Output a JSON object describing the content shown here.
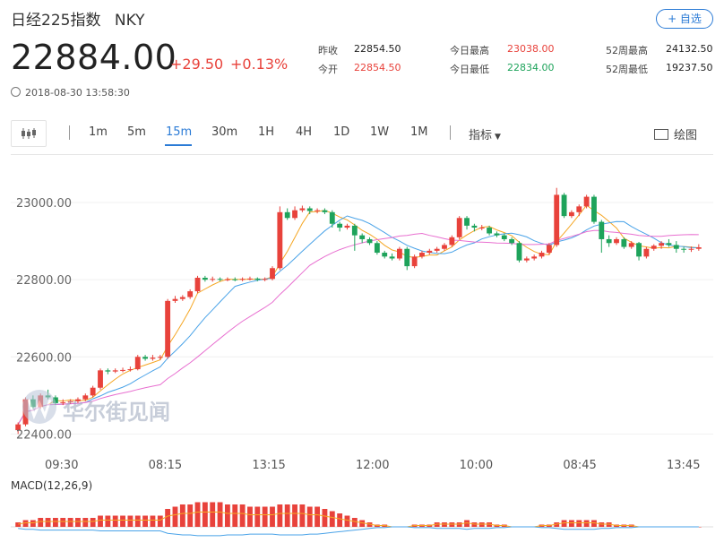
{
  "header": {
    "name": "日经225指数",
    "code": "NKY",
    "add_label": "+ 自选"
  },
  "quote": {
    "price": "22884.00",
    "change": "+29.50",
    "change_pct": "+0.13%",
    "timestamp": "2018-08-30 13:58:30"
  },
  "stats": {
    "prev_close_label": "昨收",
    "prev_close": "22854.50",
    "open_label": "今开",
    "open": "22854.50",
    "day_high_label": "今日最高",
    "day_high": "23038.00",
    "day_low_label": "今日最低",
    "day_low": "22834.00",
    "week52_high_label": "52周最高",
    "week52_high": "24132.50",
    "week52_low_label": "52周最低",
    "week52_low": "19237.50"
  },
  "toolbar": {
    "intervals": [
      "1m",
      "5m",
      "15m",
      "30m",
      "1H",
      "4H",
      "1D",
      "1W",
      "1M"
    ],
    "active": "15m",
    "indicator_label": "指标",
    "draw_label": "绘图"
  },
  "watermark": "华尔街见闻",
  "colors": {
    "up": "#e8423b",
    "down": "#1ea35b",
    "accent": "#2b7bd6",
    "ma1": "#f5a623",
    "ma2": "#4aa3e8",
    "ma3": "#e86fd0"
  },
  "chart_data": {
    "type": "candlestick",
    "ylim": [
      22380,
      23100
    ],
    "yticks": [
      22400.0,
      22600.0,
      22800.0,
      23000.0
    ],
    "ytick_labels": [
      "22400.00",
      "22600.00",
      "22800.00",
      "23000.00"
    ],
    "xtick_labels": [
      "09:30",
      "08:15",
      "13:15",
      "12:00",
      "10:00",
      "08:45",
      "13:45"
    ],
    "macd_label": "MACD(12,26,9)",
    "candles": [
      [
        22410,
        22425,
        22400,
        22430
      ],
      [
        22425,
        22490,
        22420,
        22495
      ],
      [
        22490,
        22470,
        22465,
        22500
      ],
      [
        22470,
        22500,
        22465,
        22505
      ],
      [
        22500,
        22495,
        22490,
        22515
      ],
      [
        22495,
        22480,
        22475,
        22500
      ],
      [
        22480,
        22482,
        22475,
        22490
      ],
      [
        22482,
        22485,
        22478,
        22490
      ],
      [
        22485,
        22490,
        22480,
        22495
      ],
      [
        22490,
        22500,
        22485,
        22505
      ],
      [
        22500,
        22520,
        22495,
        22525
      ],
      [
        22520,
        22565,
        22515,
        22570
      ],
      [
        22565,
        22562,
        22555,
        22570
      ],
      [
        22562,
        22565,
        22558,
        22570
      ],
      [
        22565,
        22566,
        22560,
        22572
      ],
      [
        22566,
        22568,
        22562,
        22575
      ],
      [
        22568,
        22600,
        22565,
        22605
      ],
      [
        22600,
        22595,
        22590,
        22605
      ],
      [
        22595,
        22598,
        22590,
        22605
      ],
      [
        22598,
        22600,
        22592,
        22605
      ],
      [
        22600,
        22745,
        22595,
        22750
      ],
      [
        22745,
        22750,
        22740,
        22758
      ],
      [
        22750,
        22755,
        22745,
        22760
      ],
      [
        22755,
        22770,
        22750,
        22775
      ],
      [
        22770,
        22805,
        22765,
        22810
      ],
      [
        22805,
        22800,
        22795,
        22810
      ],
      [
        22800,
        22802,
        22795,
        22808
      ],
      [
        22802,
        22800,
        22796,
        22806
      ],
      [
        22800,
        22801,
        22796,
        22806
      ],
      [
        22801,
        22800,
        22796,
        22806
      ],
      [
        22800,
        22802,
        22796,
        22806
      ],
      [
        22802,
        22803,
        22798,
        22808
      ],
      [
        22803,
        22800,
        22796,
        22806
      ],
      [
        22800,
        22802,
        22796,
        22806
      ],
      [
        22802,
        22830,
        22798,
        22835
      ],
      [
        22830,
        22975,
        22825,
        22990
      ],
      [
        22975,
        22960,
        22955,
        22985
      ],
      [
        22960,
        22980,
        22955,
        22990
      ],
      [
        22980,
        22985,
        22975,
        22992
      ],
      [
        22985,
        22978,
        22970,
        22990
      ],
      [
        22978,
        22980,
        22972,
        22985
      ],
      [
        22980,
        22975,
        22970,
        22985
      ],
      [
        22975,
        22945,
        22935,
        22980
      ],
      [
        22945,
        22935,
        22925,
        22950
      ],
      [
        22935,
        22940,
        22930,
        22945
      ],
      [
        22940,
        22915,
        22875,
        22945
      ],
      [
        22915,
        22905,
        22895,
        22920
      ],
      [
        22905,
        22895,
        22890,
        22910
      ],
      [
        22895,
        22870,
        22865,
        22900
      ],
      [
        22870,
        22860,
        22855,
        22875
      ],
      [
        22860,
        22855,
        22850,
        22868
      ],
      [
        22855,
        22880,
        22850,
        22885
      ],
      [
        22880,
        22835,
        22825,
        22885
      ],
      [
        22835,
        22860,
        22830,
        22865
      ],
      [
        22860,
        22870,
        22855,
        22875
      ],
      [
        22870,
        22875,
        22865,
        22880
      ],
      [
        22875,
        22880,
        22870,
        22885
      ],
      [
        22880,
        22890,
        22875,
        22895
      ],
      [
        22890,
        22910,
        22885,
        22915
      ],
      [
        22910,
        22960,
        22905,
        22965
      ],
      [
        22960,
        22940,
        22930,
        22965
      ],
      [
        22940,
        22935,
        22925,
        22945
      ],
      [
        22935,
        22935,
        22928,
        22942
      ],
      [
        22935,
        22920,
        22915,
        22940
      ],
      [
        22920,
        22915,
        22910,
        22925
      ],
      [
        22915,
        22905,
        22900,
        22920
      ],
      [
        22905,
        22895,
        22890,
        22910
      ],
      [
        22895,
        22850,
        22845,
        22900
      ],
      [
        22850,
        22855,
        22845,
        22860
      ],
      [
        22855,
        22860,
        22850,
        22865
      ],
      [
        22860,
        22870,
        22855,
        22875
      ],
      [
        22870,
        22890,
        22865,
        22895
      ],
      [
        22890,
        23020,
        22885,
        23038
      ],
      [
        23020,
        22965,
        22960,
        23025
      ],
      [
        22965,
        22975,
        22960,
        22980
      ],
      [
        22975,
        22990,
        22965,
        22995
      ],
      [
        22990,
        23015,
        22985,
        23020
      ],
      [
        23015,
        22950,
        22945,
        23020
      ],
      [
        22950,
        22905,
        22870,
        22955
      ],
      [
        22905,
        22895,
        22885,
        22915
      ],
      [
        22895,
        22905,
        22890,
        22910
      ],
      [
        22905,
        22885,
        22880,
        22910
      ],
      [
        22885,
        22895,
        22880,
        22900
      ],
      [
        22895,
        22860,
        22850,
        22898
      ],
      [
        22860,
        22880,
        22855,
        22885
      ],
      [
        22880,
        22888,
        22875,
        22892
      ],
      [
        22888,
        22895,
        22880,
        22900
      ],
      [
        22895,
        22890,
        22885,
        22905
      ],
      [
        22890,
        22880,
        22870,
        22900
      ],
      [
        22880,
        22878,
        22870,
        22885
      ],
      [
        22878,
        22880,
        22872,
        22886
      ],
      [
        22880,
        22884,
        22875,
        22892
      ]
    ],
    "macd": [
      -2,
      -3,
      -3,
      -4,
      -4,
      -4,
      -4,
      -4,
      -4,
      -4,
      -4,
      -5,
      -5,
      -5,
      -5,
      -5,
      -5,
      -5,
      -5,
      -5,
      -8,
      -9,
      -10,
      -10,
      -11,
      -11,
      -11,
      -11,
      -10,
      -10,
      -10,
      -9,
      -9,
      -9,
      -9,
      -10,
      -10,
      -10,
      -10,
      -9,
      -9,
      -8,
      -7,
      -6,
      -5,
      -4,
      -3,
      -2,
      -1,
      -1,
      0,
      0,
      0,
      -1,
      -1,
      -1,
      -2,
      -2,
      -2,
      -2,
      -3,
      -2,
      -2,
      -2,
      -1,
      -1,
      0,
      0,
      0,
      0,
      -1,
      -1,
      -2,
      -3,
      -3,
      -3,
      -3,
      -3,
      -2,
      -2,
      -1,
      -1,
      -1,
      0,
      0,
      0,
      0,
      0,
      0,
      0,
      0,
      0
    ]
  }
}
